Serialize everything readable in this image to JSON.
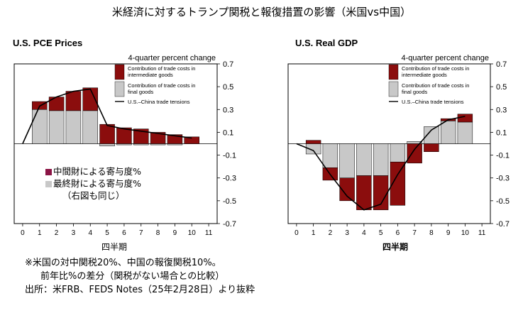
{
  "title": "米経済に対するトランプ関税と報復措置の影響（米国vs中国）",
  "colors": {
    "intermediate": "#8B0D0D",
    "final": "#C8C8C8",
    "line": "#000000",
    "frame": "#000000"
  },
  "legend": {
    "header": "4-quarter percent change",
    "intermediate": [
      "Contribution of trade costs in",
      "intermediate goods"
    ],
    "final": [
      "Contribution of trade costs in",
      "final goods"
    ],
    "line": "U.S.–China trade tensions"
  },
  "jp_legend": {
    "intermediate": "中間財による寄与度%",
    "final": "最終財による寄与度%",
    "note": "（右図も同じ）"
  },
  "notes": {
    "line1": "※米国の対中関税20%、中国の報復関税10%。",
    "line2": "前年比%の差分（関税がない場合との比較）",
    "source": "出所：米FRB、FEDS Notes（25年2月28日）より抜粋"
  },
  "chart_data": [
    {
      "type": "bar",
      "title": "U.S. PCE Prices",
      "xlabel": "四半期",
      "ylabel": "4-quarter percent change",
      "xlim": [
        -0.5,
        11.5
      ],
      "ylim": [
        -0.7,
        0.7
      ],
      "xticks": [
        0,
        1,
        2,
        3,
        4,
        5,
        6,
        7,
        8,
        9,
        10,
        11
      ],
      "yticks": [
        0.7,
        0.5,
        0.3,
        0.1,
        -0.1,
        -0.3,
        -0.5,
        -0.7
      ],
      "ytick_labels": [
        "0.7",
        "0.5",
        "0.3",
        "0.1",
        "-0.1",
        "-0.3",
        "-0.5",
        "-0.7"
      ],
      "categories": [
        1,
        2,
        3,
        4,
        5,
        6,
        7,
        8,
        9,
        10
      ],
      "series": [
        {
          "name": "Contribution of trade costs in final goods",
          "values": [
            0.3,
            0.29,
            0.29,
            0.29,
            -0.02,
            -0.01,
            -0.01,
            -0.01,
            -0.01,
            0.0
          ]
        },
        {
          "name": "Contribution of trade costs in intermediate goods",
          "values": [
            0.07,
            0.12,
            0.17,
            0.2,
            0.17,
            0.14,
            0.13,
            0.1,
            0.08,
            0.06
          ]
        }
      ],
      "line": {
        "name": "U.S.–China trade tensions",
        "x": [
          0,
          1,
          2,
          3,
          4,
          5,
          6,
          7,
          8,
          9,
          10
        ],
        "values": [
          0.0,
          0.33,
          0.41,
          0.46,
          0.48,
          0.16,
          0.13,
          0.11,
          0.09,
          0.07,
          0.05
        ]
      }
    },
    {
      "type": "bar",
      "title": "U.S. Real GDP",
      "xlabel": "四半期",
      "ylabel": "4-quarter percent change",
      "xlim": [
        -0.5,
        11.5
      ],
      "ylim": [
        -0.7,
        0.7
      ],
      "xticks": [
        0,
        1,
        2,
        3,
        4,
        5,
        6,
        7,
        8,
        9,
        10,
        11
      ],
      "yticks": [
        0.7,
        0.5,
        0.3,
        0.1,
        -0.1,
        -0.3,
        -0.5,
        -0.7
      ],
      "ytick_labels": [
        "0.7",
        "0.5",
        "0.3",
        "0.1",
        "-0.1",
        "-0.3",
        "-0.5",
        "-0.7"
      ],
      "categories": [
        1,
        2,
        3,
        4,
        5,
        6,
        7,
        8,
        9,
        10
      ],
      "series": [
        {
          "name": "Contribution of trade costs in final goods",
          "values": [
            -0.09,
            -0.21,
            -0.3,
            -0.28,
            -0.28,
            -0.16,
            0.02,
            0.15,
            0.2,
            0.19
          ]
        },
        {
          "name": "Contribution of trade costs in intermediate goods",
          "values": [
            0.03,
            -0.11,
            -0.2,
            -0.3,
            -0.3,
            -0.38,
            -0.17,
            -0.07,
            0.02,
            0.07
          ]
        }
      ],
      "line": {
        "name": "U.S.–China trade tensions",
        "x": [
          0,
          1,
          2,
          3,
          4,
          5,
          6,
          7,
          8,
          9,
          10
        ],
        "values": [
          0.0,
          -0.06,
          -0.27,
          -0.46,
          -0.58,
          -0.53,
          -0.27,
          -0.05,
          0.12,
          0.21,
          0.24
        ]
      }
    }
  ]
}
